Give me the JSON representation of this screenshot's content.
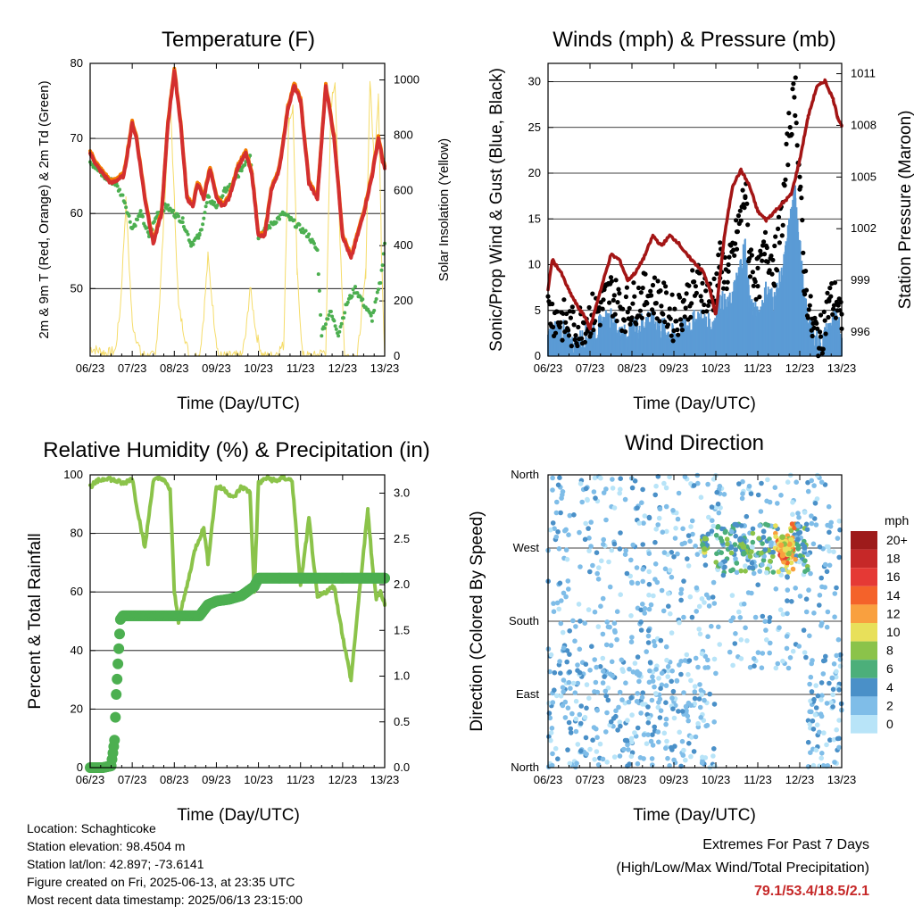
{
  "chart_data": [
    {
      "type": "line",
      "title": "Temperature (F)",
      "xlabel": "Time (Day/UTC)",
      "ylabel_left": "2m & 9m T (Red, Orange) & 2m Td (Green)",
      "ylabel_right": "Solar Insolation (Yellow)",
      "x_ticks": [
        "06/23",
        "07/23",
        "08/23",
        "09/23",
        "10/23",
        "11/23",
        "12/23",
        "13/23"
      ],
      "ylim_left": [
        41,
        80
      ],
      "y_ticks_left": [
        50,
        60,
        70,
        80
      ],
      "ylim_right": [
        0,
        1060
      ],
      "y_ticks_right": [
        0,
        200,
        400,
        600,
        800,
        1000
      ],
      "grid": "horizontal",
      "colors": {
        "t2m": "#d32f2f",
        "t9m": "#f57c00",
        "td": "#4caf50",
        "solar": "#f5dc6a"
      },
      "series": [
        {
          "key": "t2m",
          "x": [
            0,
            0.2,
            0.5,
            0.8,
            1.0,
            1.1,
            1.3,
            1.5,
            1.7,
            1.85,
            2.0,
            2.15,
            2.3,
            2.45,
            2.55,
            2.7,
            2.85,
            3.0,
            3.15,
            3.3,
            3.5,
            3.7,
            3.85,
            4.0,
            4.15,
            4.3,
            4.5,
            4.7,
            4.85,
            5.0,
            5.2,
            5.4,
            5.6,
            5.8,
            6.0,
            6.2,
            6.5,
            6.7,
            6.85,
            6.95,
            7.0
          ],
          "y": [
            68,
            66,
            64,
            65,
            72,
            70,
            62,
            56,
            60,
            72,
            79,
            72,
            62,
            61,
            64,
            62,
            66,
            62,
            61,
            62,
            66,
            68,
            65,
            57,
            57,
            63,
            66,
            74,
            77,
            75,
            64,
            62,
            77,
            70,
            57,
            54,
            60,
            65,
            70,
            67,
            66
          ]
        },
        {
          "key": "td",
          "x": [
            0,
            0.3,
            0.6,
            0.8,
            1.0,
            1.2,
            1.4,
            1.6,
            1.8,
            2.0,
            2.2,
            2.4,
            2.6,
            2.8,
            3.0,
            3.2,
            3.4,
            3.6,
            3.8,
            4.0,
            4.2,
            4.4,
            4.6,
            4.8,
            5.0,
            5.2,
            5.4,
            5.5,
            5.7,
            5.9,
            6.1,
            6.3,
            6.5,
            6.7,
            6.9,
            7.0
          ],
          "y": [
            67,
            65,
            64,
            62,
            58,
            60,
            57,
            60,
            61,
            60,
            59,
            56,
            57,
            62,
            61,
            63,
            64,
            66,
            68,
            57,
            58,
            59,
            60,
            59,
            58,
            57,
            55,
            44,
            47,
            44,
            48,
            50,
            48,
            46,
            51,
            56
          ]
        },
        {
          "key": "solar",
          "x": [
            0,
            0.4,
            0.6,
            0.72,
            0.85,
            1.0,
            1.2,
            1.35,
            1.55,
            1.65,
            1.8,
            1.9,
            2.1,
            2.35,
            2.6,
            2.7,
            2.8,
            2.95,
            3.05,
            3.35,
            3.6,
            3.7,
            3.8,
            3.95,
            4.1,
            4.35,
            4.6,
            4.72,
            4.82,
            4.92,
            5.05,
            5.35,
            5.6,
            5.72,
            5.82,
            5.92,
            6.05,
            6.35,
            6.55,
            6.65,
            6.75,
            6.85,
            6.92,
            7.0
          ],
          "y": [
            30,
            10,
            20,
            180,
            560,
            120,
            10,
            0,
            0,
            200,
            640,
            950,
            180,
            0,
            0,
            150,
            360,
            120,
            0,
            0,
            0,
            80,
            250,
            80,
            0,
            0,
            40,
            850,
            900,
            300,
            0,
            0,
            20,
            900,
            1000,
            500,
            0,
            0,
            300,
            1000,
            700,
            950,
            400,
            0
          ]
        }
      ]
    },
    {
      "type": "line",
      "title": "Winds (mph) & Pressure (mb)",
      "xlabel": "Time (Day/UTC)",
      "ylabel_left": "Sonic/Prop Wind & Gust (Blue, Black)",
      "ylabel_right": "Station Pressure (Maroon)",
      "x_ticks": [
        "06/23",
        "07/23",
        "08/23",
        "09/23",
        "10/23",
        "11/23",
        "12/23",
        "13/23"
      ],
      "ylim_left": [
        0,
        32
      ],
      "y_ticks_left": [
        0,
        5,
        10,
        15,
        20,
        25,
        30
      ],
      "ylim_right": [
        994.6,
        1011.6
      ],
      "y_ticks_right": [
        996,
        999,
        1002,
        1005,
        1008,
        1011
      ],
      "grid": "horizontal",
      "colors": {
        "wind": "#5b9bd5",
        "gust": "#000000",
        "pressure": "#a31515"
      },
      "series": [
        {
          "key": "pressure",
          "x": [
            0,
            0.1,
            0.3,
            0.5,
            0.7,
            0.9,
            1.0,
            1.2,
            1.5,
            1.7,
            1.9,
            2.1,
            2.3,
            2.5,
            2.7,
            2.9,
            3.1,
            3.3,
            3.5,
            3.7,
            3.85,
            4.0,
            4.2,
            4.4,
            4.6,
            4.8,
            5.0,
            5.2,
            5.4,
            5.6,
            5.8,
            6.0,
            6.2,
            6.4,
            6.6,
            6.8,
            6.9,
            7.0
          ],
          "y": [
            998.5,
            1000.2,
            999.5,
            998.4,
            997.5,
            996.8,
            996.2,
            998,
            1000.5,
            1000.2,
            999.0,
            999.5,
            1000.4,
            1001.6,
            1001.0,
            1001.6,
            1001.2,
            1000.5,
            1000.0,
            999.5,
            998.5,
            997.0,
            1001.5,
            1004.5,
            1005.4,
            1004.5,
            1003.0,
            1002.5,
            1003.0,
            1003.5,
            1004.0,
            1006.0,
            1008.5,
            1010.2,
            1010.6,
            1009.5,
            1008.5,
            1008.0
          ]
        },
        {
          "key": "wind",
          "x": [
            0,
            0.3,
            0.6,
            0.9,
            1.2,
            1.5,
            1.8,
            2.1,
            2.4,
            2.7,
            3.0,
            3.3,
            3.6,
            3.9,
            4.1,
            4.3,
            4.5,
            4.7,
            4.8,
            5.0,
            5.2,
            5.4,
            5.6,
            5.75,
            5.9,
            6.0,
            6.1,
            6.3,
            6.5,
            6.7,
            6.9,
            7.0
          ],
          "y": [
            2,
            3,
            1,
            2,
            3,
            4,
            2,
            3,
            4,
            3,
            2,
            3,
            4,
            3,
            6,
            5,
            8,
            12,
            6,
            4,
            7,
            6,
            9,
            14,
            18,
            12,
            6,
            2,
            1,
            3,
            4,
            2
          ]
        },
        {
          "key": "gust",
          "x": [
            0,
            0.3,
            0.6,
            0.9,
            1.2,
            1.5,
            1.8,
            2.1,
            2.4,
            2.7,
            3.0,
            3.3,
            3.6,
            3.9,
            4.1,
            4.3,
            4.5,
            4.7,
            4.8,
            5.0,
            5.2,
            5.4,
            5.6,
            5.75,
            5.9,
            6.0,
            6.1,
            6.3,
            6.5,
            6.7,
            6.9,
            7.0
          ],
          "y": [
            5,
            4,
            3,
            4,
            5,
            7,
            5,
            6,
            7,
            6,
            4,
            6,
            8,
            6,
            10,
            9,
            13,
            18,
            11,
            8,
            12,
            10,
            16,
            25,
            29,
            19,
            9,
            3,
            2,
            6,
            6,
            3
          ]
        }
      ]
    },
    {
      "type": "line",
      "title": "Relative Humidity (%) & Precipitation (in)",
      "xlabel": "Time (Day/UTC)",
      "ylabel_left": "Percent & Total Rainfall",
      "x_ticks": [
        "06/23",
        "07/23",
        "08/23",
        "09/23",
        "10/23",
        "11/23",
        "12/23",
        "13/23"
      ],
      "ylim_left": [
        0,
        100
      ],
      "y_ticks_left": [
        0,
        20,
        40,
        60,
        80,
        100
      ],
      "ylim_right": [
        0,
        3.2
      ],
      "y_ticks_right": [
        "0.0",
        "0.5",
        "1.0",
        "1.5",
        "2.0",
        "2.5",
        "3.0"
      ],
      "grid": "horizontal",
      "colors": {
        "rh": "#8bc34a",
        "precip": "#4caf50"
      },
      "series": [
        {
          "key": "rh",
          "x": [
            0,
            0.2,
            0.4,
            0.6,
            0.8,
            1.0,
            1.1,
            1.3,
            1.5,
            1.7,
            1.9,
            2.0,
            2.1,
            2.3,
            2.5,
            2.7,
            2.8,
            3.0,
            3.2,
            3.4,
            3.6,
            3.8,
            3.9,
            4.0,
            4.2,
            4.4,
            4.6,
            4.8,
            5.0,
            5.2,
            5.4,
            5.6,
            5.8,
            6.0,
            6.2,
            6.4,
            6.6,
            6.7,
            6.8,
            6.9,
            7.0
          ],
          "y": [
            96,
            98,
            99,
            98,
            97,
            99,
            90,
            75,
            98,
            99,
            95,
            60,
            50,
            62,
            75,
            82,
            70,
            96,
            95,
            92,
            96,
            94,
            60,
            97,
            99,
            98,
            99,
            98,
            62,
            85,
            58,
            60,
            62,
            45,
            30,
            60,
            88,
            70,
            58,
            60,
            56
          ]
        },
        {
          "key": "precip",
          "x": [
            0,
            0.3,
            0.5,
            0.58,
            0.62,
            0.68,
            0.72,
            0.78,
            1.0,
            2.0,
            2.6,
            2.8,
            3.0,
            3.3,
            3.6,
            3.9,
            4.0,
            4.5,
            5.0,
            6.0,
            7.0
          ],
          "y": [
            0,
            0,
            0.02,
            0.3,
            0.8,
            1.3,
            1.62,
            1.66,
            1.66,
            1.66,
            1.66,
            1.78,
            1.82,
            1.84,
            1.88,
            1.98,
            2.07,
            2.07,
            2.07,
            2.07,
            2.07
          ]
        }
      ]
    },
    {
      "type": "scatter",
      "title": "Wind Direction",
      "xlabel": "Time (Day/UTC)",
      "ylabel": "Direction (Colored By Speed)",
      "x_ticks": [
        "06/23",
        "07/23",
        "08/23",
        "09/23",
        "10/23",
        "11/23",
        "12/23",
        "13/23"
      ],
      "y_ticks": [
        "North",
        "East",
        "South",
        "West",
        "North"
      ],
      "ylim": [
        0,
        360
      ],
      "grid": "horizontal",
      "legend": {
        "title": "mph",
        "labels": [
          "20+",
          "18",
          "16",
          "14",
          "12",
          "10",
          "8",
          "6",
          "4",
          "2",
          "0"
        ],
        "colors": [
          "#9e1b1b",
          "#c62828",
          "#e53935",
          "#f4622a",
          "#f9a03f",
          "#e8e05a",
          "#8bc34a",
          "#4caf7a",
          "#4a90c8",
          "#7fbde8",
          "#b8e4f8"
        ]
      }
    }
  ],
  "footer": {
    "location": "Location: Schaghticoke",
    "elevation": "Station elevation: 98.4504 m",
    "latlon": "Station lat/lon: 42.897; -73.6141",
    "created": "Figure created on Fri, 2025-06-13, at 23:35 UTC",
    "recent": "Most recent data timestamp: 2025/06/13 23:15:00"
  },
  "extremes": {
    "line1": "Extremes For Past 7 Days",
    "line2": "(High/Low/Max Wind/Total Precipitation)",
    "values": "79.1/53.4/18.5/2.1"
  }
}
